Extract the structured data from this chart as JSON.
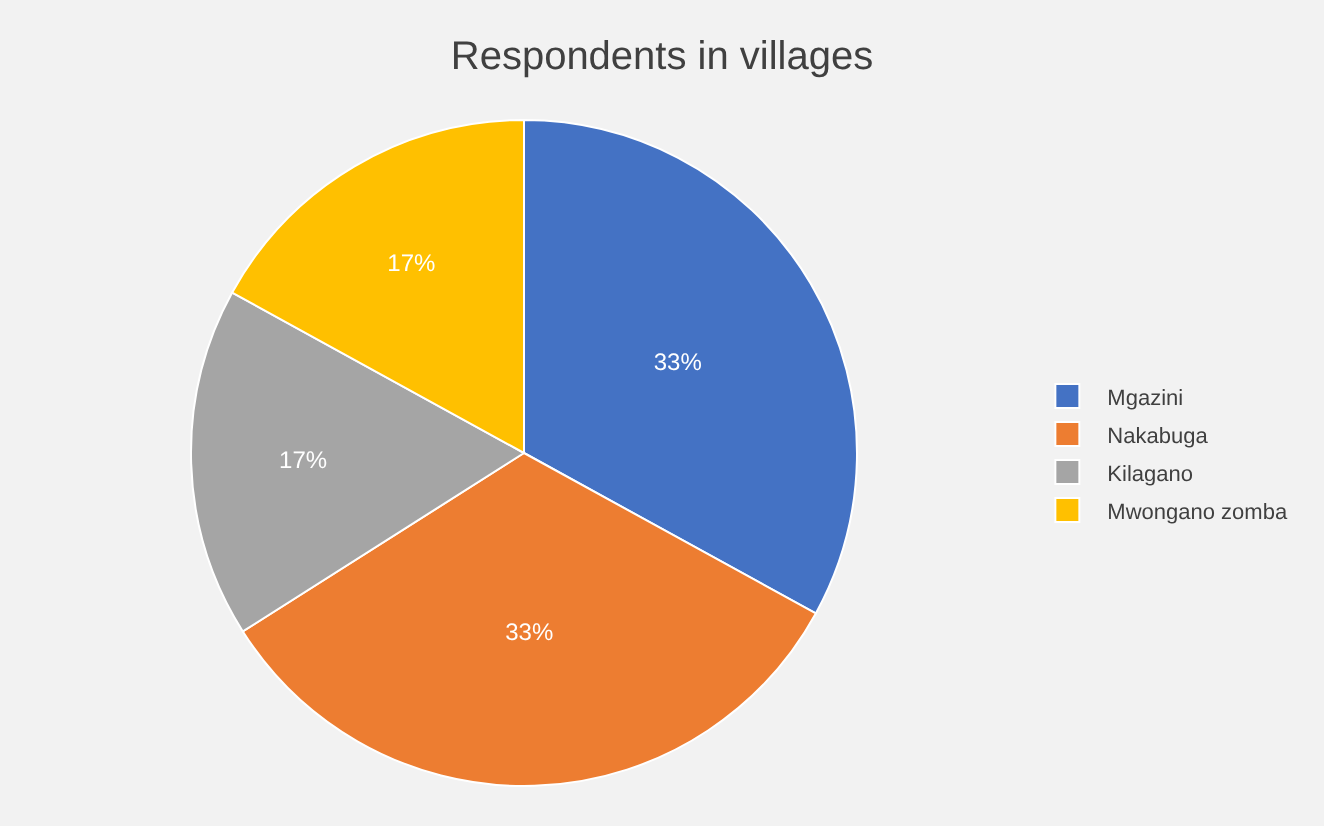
{
  "chart_data": {
    "type": "pie",
    "title": "Respondents in villages",
    "categories": [
      "Mgazini",
      "Nakabuga",
      "Kilagano",
      "Mwongano zomba"
    ],
    "values": [
      33,
      33,
      17,
      17
    ],
    "value_labels": [
      "33%",
      "33%",
      "17%",
      "17%"
    ],
    "colors": [
      "#4472c4",
      "#ed7d31",
      "#a5a5a5",
      "#ffc000"
    ],
    "legend": "right"
  }
}
